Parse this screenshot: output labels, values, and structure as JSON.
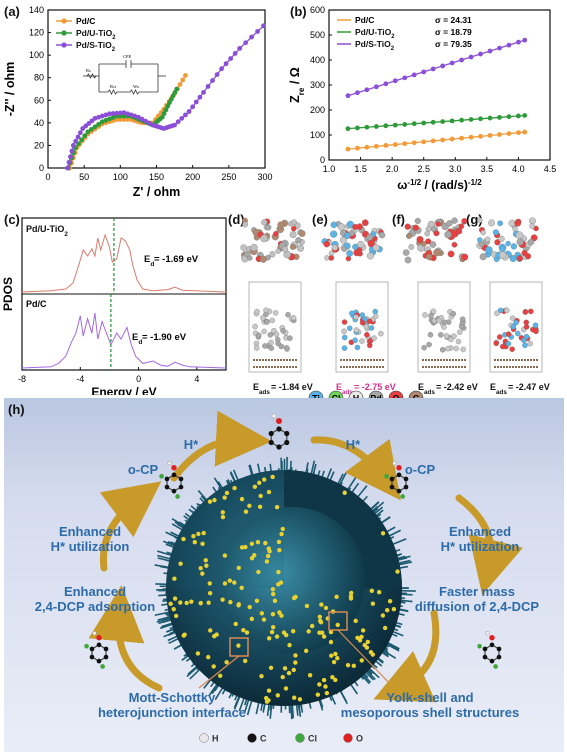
{
  "panel_labels": {
    "a": "(a)",
    "b": "(b)",
    "c": "(c)",
    "d": "(d)",
    "e": "(e)",
    "f": "(f)",
    "g": "(g)",
    "h": "(h)"
  },
  "colors": {
    "pdc": "#f29a38",
    "pdu": "#2f9a3a",
    "pds": "#8a4fd6",
    "pdos_top": "#d87c6e",
    "pdos_bottom": "#a06ae0",
    "dash": "#2a8a3a",
    "blue_text": "#2d6ca8",
    "arrow": "#c79a2a"
  },
  "chart_data": [
    {
      "type": "line",
      "panel": "a",
      "xlabel": "Z' / ohm",
      "ylabel": "-Z'' / ohm",
      "xlim": [
        0,
        300
      ],
      "ylim": [
        0,
        140
      ],
      "xticks": [
        "0",
        "50",
        "100",
        "150",
        "200",
        "250",
        "300"
      ],
      "yticks": [
        "0",
        "20",
        "40",
        "60",
        "80",
        "100",
        "120",
        "140"
      ],
      "series": [
        {
          "name": "Pd/C",
          "points": [
            [
              30,
              0
            ],
            [
              40,
              18
            ],
            [
              55,
              30
            ],
            [
              75,
              39
            ],
            [
              95,
              43
            ],
            [
              115,
              43
            ],
            [
              130,
              40
            ],
            [
              145,
              40
            ],
            [
              160,
              52
            ],
            [
              175,
              66
            ],
            [
              190,
              82
            ]
          ]
        },
        {
          "name": "Pd/U-TiO2",
          "points": [
            [
              28,
              0
            ],
            [
              38,
              18
            ],
            [
              55,
              32
            ],
            [
              75,
              41
            ],
            [
              95,
              46
            ],
            [
              115,
              46
            ],
            [
              130,
              42
            ],
            [
              145,
              38
            ],
            [
              158,
              45
            ],
            [
              168,
              58
            ],
            [
              178,
              70
            ]
          ]
        },
        {
          "name": "Pd/S-TiO2",
          "points": [
            [
              27,
              0
            ],
            [
              35,
              20
            ],
            [
              48,
              35
            ],
            [
              65,
              44
            ],
            [
              85,
              48
            ],
            [
              105,
              49
            ],
            [
              125,
              45
            ],
            [
              145,
              38
            ],
            [
              160,
              35
            ],
            [
              175,
              38
            ],
            [
              195,
              50
            ],
            [
              215,
              67
            ],
            [
              240,
              88
            ],
            [
              265,
              106
            ],
            [
              298,
              126
            ]
          ]
        }
      ],
      "inset_labels": {
        "cpe": "CPE",
        "rs": "Rs",
        "rct": "Rct",
        "wo": "Wo"
      }
    },
    {
      "type": "scatter",
      "panel": "b",
      "xlabel": "ω^-1/2 / (rad/s)^-1/2",
      "ylabel": "Z_re / Ω",
      "xlim": [
        1.0,
        4.5
      ],
      "ylim": [
        0,
        600
      ],
      "xticks": [
        "1.0",
        "1.5",
        "2.0",
        "2.5",
        "3.0",
        "3.5",
        "4.0",
        "4.5"
      ],
      "yticks": [
        "0",
        "100",
        "200",
        "300",
        "400",
        "500",
        "600"
      ],
      "series": [
        {
          "name": "Pd/C",
          "sigma": "σ = 24.31",
          "intercept": 12,
          "slope": 24.31
        },
        {
          "name": "Pd/U-TiO2",
          "sigma": "σ = 18.79",
          "intercept": 101,
          "slope": 18.79
        },
        {
          "name": "Pd/S-TiO2",
          "sigma": "σ = 79.35",
          "intercept": 154,
          "slope": 79.35
        }
      ],
      "x_points": [
        1.3,
        1.45,
        1.6,
        1.75,
        1.9,
        2.05,
        2.2,
        2.35,
        2.5,
        2.65,
        2.8,
        2.95,
        3.1,
        3.25,
        3.4,
        3.55,
        3.7,
        3.85,
        4.0,
        4.1
      ]
    },
    {
      "type": "line",
      "panel": "c",
      "xlabel": "Energy / eV",
      "ylabel": "PDOS",
      "xlim": [
        -8,
        6
      ],
      "xticks": [
        "-8",
        "-4",
        "0",
        "4"
      ],
      "series": [
        {
          "name": "Pd/U-TiO2",
          "ed": "E_d = -1.69 eV"
        },
        {
          "name": "Pd/C",
          "ed": "E_d = -1.90 eV"
        }
      ]
    }
  ],
  "structures": {
    "eads": [
      "E_ads = -1.84 eV",
      "E_ads = -2.75 eV",
      "E_ads = -2.42 eV",
      "E_ads = -2.47 eV"
    ],
    "legend": [
      {
        "sym": "Ti",
        "color": "#5ab4e8"
      },
      {
        "sym": "Cl",
        "color": "#6fd45a"
      },
      {
        "sym": "H",
        "color": "#e8e8e8"
      },
      {
        "sym": "Pd",
        "color": "#a8a8a8"
      },
      {
        "sym": "O",
        "color": "#e84040"
      },
      {
        "sym": "C",
        "color": "#b08a70"
      }
    ]
  },
  "scheme": {
    "hstar_left": "H*",
    "hstar_right": "H*",
    "ocp_left": "o-CP",
    "ocp_right": "o-CP",
    "enh_h_left_1": "Enhanced",
    "enh_h_left_2": "H* utilization",
    "enh_h_right_1": "Enhanced",
    "enh_h_right_2": "H* utilization",
    "enh_dcp_1": "Enhanced",
    "enh_dcp_2": "2,4-DCP adsorption",
    "faster_1": "Faster mass",
    "faster_2": "diffusion of 2,4-DCP",
    "mott_1": "Mott-Schottky",
    "mott_2": "heterojunction interface",
    "yolk_1": "Yolk-shell and",
    "yolk_2": "mesoporous shell structures",
    "atom_legend": [
      {
        "sym": "H",
        "color": "#e8e8e8"
      },
      {
        "sym": "C",
        "color": "#111111"
      },
      {
        "sym": "Cl",
        "color": "#3fa83a"
      },
      {
        "sym": "O",
        "color": "#e02020"
      }
    ]
  }
}
